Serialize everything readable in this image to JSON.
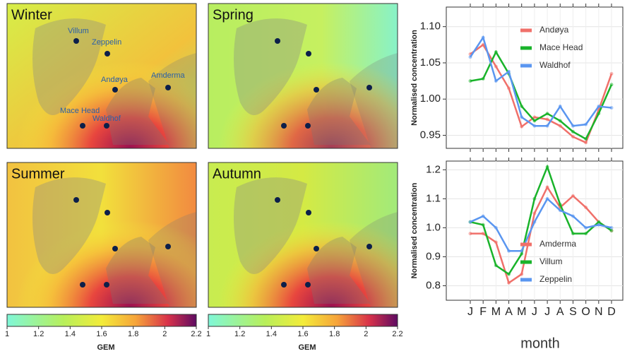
{
  "maps": {
    "seasons": [
      "Winter",
      "Spring",
      "Summer",
      "Autumn"
    ],
    "stations": [
      "Villum",
      "Zeppelin",
      "Andøya",
      "Amderma",
      "Mace Head",
      "Waldhof"
    ]
  },
  "colorbar": {
    "label": "GEM",
    "range": [
      1,
      2.2
    ],
    "ticks": [
      1,
      1.2,
      1.4,
      1.6,
      1.8,
      2,
      2.2
    ]
  },
  "chart_data": [
    {
      "type": "line",
      "y_label": "Normalised concentration",
      "categories": [
        "J",
        "F",
        "M",
        "A",
        "M",
        "J",
        "J",
        "A",
        "S",
        "O",
        "N",
        "D"
      ],
      "ylim": [
        0.932,
        1.127
      ],
      "yticks": [
        {
          "value": 0.95,
          "label": "0.95"
        },
        {
          "value": 1.0,
          "label": "1.00"
        },
        {
          "value": 1.05,
          "label": "1.05"
        },
        {
          "value": 1.1,
          "label": "1.10"
        }
      ],
      "legend": "upper right",
      "series": [
        {
          "name": "Andøya",
          "color": "#f0706a",
          "values": [
            1.062,
            1.075,
            1.045,
            1.015,
            0.962,
            0.975,
            0.972,
            0.963,
            0.948,
            0.94,
            0.985,
            1.035
          ]
        },
        {
          "name": "Mace Head",
          "color": "#19b32a",
          "values": [
            1.025,
            1.028,
            1.065,
            1.035,
            0.99,
            0.97,
            0.98,
            0.97,
            0.955,
            0.945,
            0.98,
            1.02
          ]
        },
        {
          "name": "Waldhof",
          "color": "#5a96f0",
          "values": [
            1.058,
            1.085,
            1.025,
            1.038,
            0.975,
            0.963,
            0.963,
            0.99,
            0.963,
            0.965,
            0.99,
            0.988
          ]
        }
      ]
    },
    {
      "type": "line",
      "y_label": "Normalised concentration",
      "x_label": "month",
      "categories": [
        "J",
        "F",
        "M",
        "A",
        "M",
        "J",
        "J",
        "A",
        "S",
        "O",
        "N",
        "D"
      ],
      "ylim": [
        0.75,
        1.23
      ],
      "yticks": [
        0.8,
        0.9,
        {
          "value": 1.0,
          "label": "1.0"
        },
        1.1,
        1.2
      ],
      "legend": "lower right",
      "series": [
        {
          "name": "Amderma",
          "color": "#f0706a",
          "values": [
            0.98,
            0.98,
            0.95,
            0.81,
            0.84,
            1.05,
            1.14,
            1.07,
            1.11,
            1.07,
            1.02,
            0.99
          ]
        },
        {
          "name": "Villum",
          "color": "#19b32a",
          "values": [
            1.02,
            1.01,
            0.87,
            0.84,
            0.91,
            1.1,
            1.21,
            1.08,
            0.98,
            0.98,
            1.02,
            0.99
          ]
        },
        {
          "name": "Zeppelin",
          "color": "#5a96f0",
          "values": [
            1.02,
            1.04,
            1.0,
            0.92,
            0.92,
            1.02,
            1.1,
            1.06,
            1.04,
            1.0,
            1.01,
            1.0
          ]
        }
      ]
    }
  ]
}
